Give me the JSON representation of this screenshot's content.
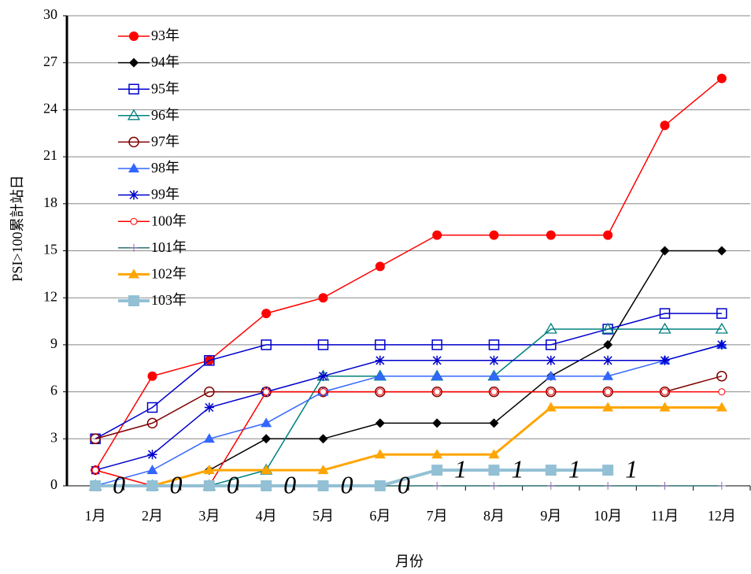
{
  "chart_data": {
    "type": "line",
    "y_label": "PSI>100累計站日",
    "x_label": "月份",
    "categories": [
      "1月",
      "2月",
      "3月",
      "4月",
      "5月",
      "6月",
      "7月",
      "8月",
      "9月",
      "10月",
      "11月",
      "12月"
    ],
    "ylim": [
      0,
      30
    ],
    "yticks": [
      0,
      3,
      6,
      9,
      12,
      15,
      18,
      21,
      24,
      27,
      30
    ],
    "grid": true,
    "legend": "upper left",
    "series": [
      {
        "name": "93年",
        "color": "#ff0000",
        "marker": "circle-filled",
        "values": [
          1,
          7,
          8,
          11,
          12,
          14,
          16,
          16,
          16,
          16,
          23,
          26
        ]
      },
      {
        "name": "94年",
        "color": "#000000",
        "marker": "diamond",
        "values": [
          0,
          0,
          1,
          3,
          3,
          4,
          4,
          4,
          7,
          9,
          15,
          15
        ]
      },
      {
        "name": "95年",
        "color": "#0000cc",
        "marker": "square-open",
        "values": [
          3,
          5,
          8,
          9,
          9,
          9,
          9,
          9,
          9,
          10,
          11,
          11
        ]
      },
      {
        "name": "96年",
        "color": "#008080",
        "marker": "triangle-open",
        "values": [
          0,
          0,
          0,
          1,
          7,
          7,
          7,
          7,
          10,
          10,
          10,
          10
        ]
      },
      {
        "name": "97年",
        "color": "#800000",
        "marker": "circle-open",
        "values": [
          3,
          4,
          6,
          6,
          6,
          6,
          6,
          6,
          6,
          6,
          6,
          7
        ]
      },
      {
        "name": "98年",
        "color": "#3366ff",
        "marker": "triangle-filled",
        "values": [
          0,
          1,
          3,
          4,
          6,
          7,
          7,
          7,
          7,
          7,
          8,
          9
        ]
      },
      {
        "name": "99年",
        "color": "#0000cc",
        "marker": "star",
        "values": [
          1,
          2,
          5,
          6,
          7,
          8,
          8,
          8,
          8,
          8,
          8,
          9
        ]
      },
      {
        "name": "100年",
        "color": "#ff0000",
        "marker": "circle-small",
        "values": [
          1,
          0,
          0,
          6,
          6,
          6,
          6,
          6,
          6,
          6,
          6,
          6
        ]
      },
      {
        "name": "101年",
        "color": "#2f6f6f",
        "marker": "plus",
        "values": [
          0,
          0,
          0,
          0,
          0,
          0,
          0,
          0,
          0,
          0,
          0,
          0
        ]
      },
      {
        "name": "102年",
        "color": "#ffa500",
        "marker": "triangle-filled",
        "width": 3,
        "values": [
          0,
          0,
          1,
          1,
          1,
          2,
          2,
          2,
          5,
          5,
          5,
          5
        ]
      },
      {
        "name": "103年",
        "color": "#93c0d4",
        "marker": "square-filled",
        "width": 4,
        "data_labels": true,
        "values": [
          0,
          0,
          0,
          0,
          0,
          0,
          1,
          1,
          1,
          1,
          null,
          null
        ]
      }
    ]
  }
}
